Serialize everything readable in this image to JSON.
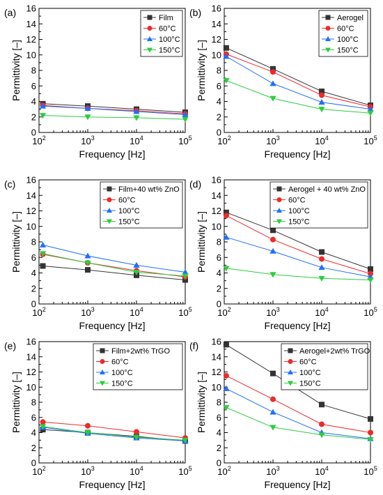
{
  "figure": {
    "colors": {
      "black": "#333333",
      "red": "#ee2a2a",
      "blue": "#1f6fff",
      "green": "#2ecc40"
    }
  },
  "chart_data": [
    {
      "type": "line",
      "panel_label": "(a)",
      "xlabel": "Frequency [Hz]",
      "ylabel": "Permittivity [–]",
      "xscale": "log",
      "xlim": [
        100,
        100000
      ],
      "ylim": [
        0,
        16
      ],
      "x_tick_labels": [
        "10^2",
        "10^3",
        "10^4",
        "10^5"
      ],
      "y_ticks": [
        0,
        2,
        4,
        6,
        8,
        10,
        12,
        14,
        16
      ],
      "legend_position": "top-right",
      "x": [
        120,
        1000,
        10000,
        100000
      ],
      "series": [
        {
          "name": "Film",
          "marker": "square",
          "color": "#333333",
          "values": [
            3.7,
            3.4,
            3.0,
            2.6
          ]
        },
        {
          "name": "60°C",
          "marker": "circle",
          "color": "#ee2a2a",
          "values": [
            3.5,
            3.1,
            2.8,
            2.4
          ]
        },
        {
          "name": "100°C",
          "marker": "triangle-up",
          "color": "#1f6fff",
          "values": [
            3.4,
            3.1,
            2.7,
            2.3
          ]
        },
        {
          "name": "150°C",
          "marker": "triangle-down",
          "color": "#2ecc40",
          "values": [
            2.2,
            2.0,
            1.9,
            1.7
          ]
        }
      ]
    },
    {
      "type": "line",
      "panel_label": "(b)",
      "xlabel": "Frequency [Hz]",
      "ylabel": "Permittivity [–]",
      "xscale": "log",
      "xlim": [
        100,
        100000
      ],
      "ylim": [
        0,
        16
      ],
      "x_tick_labels": [
        "10^2",
        "10^3",
        "10^4",
        "10^5"
      ],
      "y_ticks": [
        0,
        2,
        4,
        6,
        8,
        10,
        12,
        14,
        16
      ],
      "legend_position": "top-right",
      "x": [
        110,
        1000,
        10000,
        100000
      ],
      "series": [
        {
          "name": "Aerogel",
          "marker": "square",
          "color": "#333333",
          "values": [
            10.9,
            8.2,
            5.3,
            3.5
          ]
        },
        {
          "name": "60°C",
          "marker": "circle",
          "color": "#ee2a2a",
          "values": [
            10.1,
            7.8,
            4.8,
            3.3
          ]
        },
        {
          "name": "100°C",
          "marker": "triangle-up",
          "color": "#1f6fff",
          "values": [
            9.8,
            6.3,
            3.9,
            3.0
          ]
        },
        {
          "name": "150°C",
          "marker": "triangle-down",
          "color": "#2ecc40",
          "values": [
            6.7,
            4.4,
            3.0,
            2.5
          ]
        }
      ]
    },
    {
      "type": "line",
      "panel_label": "(c)",
      "xlabel": "Frequency [Hz]",
      "ylabel": "Permittivity [–]",
      "xscale": "log",
      "xlim": [
        100,
        100000
      ],
      "ylim": [
        0,
        16
      ],
      "x_tick_labels": [
        "10^2",
        "10^3",
        "10^4",
        "10^5"
      ],
      "y_ticks": [
        0,
        2,
        4,
        6,
        8,
        10,
        12,
        14,
        16
      ],
      "legend_position": "top-right",
      "x": [
        120,
        1000,
        10000,
        100000
      ],
      "series": [
        {
          "name": "Film+40 wt% ZnO",
          "marker": "square",
          "color": "#333333",
          "values": [
            4.9,
            4.4,
            3.7,
            3.1
          ]
        },
        {
          "name": "60°C",
          "marker": "circle",
          "color": "#ee2a2a",
          "values": [
            6.4,
            5.3,
            4.3,
            3.5
          ]
        },
        {
          "name": "100°C",
          "marker": "triangle-up",
          "color": "#1f6fff",
          "values": [
            7.6,
            6.2,
            5.0,
            4.1
          ]
        },
        {
          "name": "150°C",
          "marker": "triangle-down",
          "color": "#2ecc40",
          "values": [
            6.5,
            5.3,
            4.1,
            3.6
          ]
        }
      ]
    },
    {
      "type": "line",
      "panel_label": "(d)",
      "xlabel": "Frequency [Hz]",
      "ylabel": "Permittivity [–]",
      "xscale": "log",
      "xlim": [
        100,
        100000
      ],
      "ylim": [
        0,
        16
      ],
      "x_tick_labels": [
        "10^2",
        "10^3",
        "10^4",
        "10^5"
      ],
      "y_ticks": [
        0,
        2,
        4,
        6,
        8,
        10,
        12,
        14,
        16
      ],
      "legend_position": "top-right",
      "x": [
        110,
        1000,
        10000,
        100000
      ],
      "series": [
        {
          "name": "Aerogel + 40 wt% ZnO",
          "marker": "square",
          "color": "#333333",
          "values": [
            11.8,
            9.5,
            6.7,
            4.5
          ]
        },
        {
          "name": "60°C",
          "marker": "circle",
          "color": "#ee2a2a",
          "values": [
            11.4,
            8.3,
            5.8,
            3.9
          ]
        },
        {
          "name": "100°C",
          "marker": "triangle-up",
          "color": "#1f6fff",
          "values": [
            8.6,
            6.8,
            4.7,
            3.5
          ]
        },
        {
          "name": "150°C",
          "marker": "triangle-down",
          "color": "#2ecc40",
          "values": [
            4.6,
            3.8,
            3.3,
            3.1
          ]
        }
      ]
    },
    {
      "type": "line",
      "panel_label": "(e)",
      "xlabel": "Frequency [Hz]",
      "ylabel": "Permittivity [–]",
      "xscale": "log",
      "xlim": [
        100,
        100000
      ],
      "ylim": [
        0,
        16
      ],
      "x_tick_labels": [
        "10^2",
        "10^3",
        "10^4",
        "10^5"
      ],
      "y_ticks": [
        0,
        2,
        4,
        6,
        8,
        10,
        12,
        14,
        16
      ],
      "legend_position": "top-right",
      "x": [
        120,
        1000,
        10000,
        100000
      ],
      "series": [
        {
          "name": "Film+2wt% TrGO",
          "marker": "square",
          "color": "#333333",
          "values": [
            4.4,
            4.0,
            3.5,
            2.9
          ]
        },
        {
          "name": "60°C",
          "marker": "circle",
          "color": "#ee2a2a",
          "values": [
            5.4,
            4.9,
            4.1,
            3.3
          ]
        },
        {
          "name": "100°C",
          "marker": "triangle-up",
          "color": "#1f6fff",
          "values": [
            4.7,
            3.9,
            3.3,
            2.9
          ]
        },
        {
          "name": "150°C",
          "marker": "triangle-down",
          "color": "#2ecc40",
          "values": [
            4.8,
            4.0,
            3.4,
            3.0
          ]
        }
      ]
    },
    {
      "type": "line",
      "panel_label": "(f)",
      "xlabel": "Frequency [Hz]",
      "ylabel": "Permittivity [–]",
      "xscale": "log",
      "xlim": [
        100,
        100000
      ],
      "ylim": [
        0,
        16
      ],
      "x_tick_labels": [
        "10^2",
        "10^3",
        "10^4",
        "10^5"
      ],
      "y_ticks": [
        0,
        2,
        4,
        6,
        8,
        10,
        12,
        14,
        16
      ],
      "legend_position": "top-right",
      "x": [
        110,
        1000,
        10000,
        100000
      ],
      "series": [
        {
          "name": "Aerogel+2wt% TrGO",
          "marker": "square",
          "color": "#333333",
          "values": [
            15.6,
            11.8,
            7.7,
            5.8
          ]
        },
        {
          "name": "60°C",
          "marker": "circle",
          "color": "#ee2a2a",
          "values": [
            11.5,
            8.4,
            5.1,
            4.0
          ]
        },
        {
          "name": "100°C",
          "marker": "triangle-up",
          "color": "#1f6fff",
          "values": [
            9.8,
            6.7,
            4.0,
            3.2
          ]
        },
        {
          "name": "150°C",
          "marker": "triangle-down",
          "color": "#2ecc40",
          "values": [
            7.3,
            4.7,
            3.7,
            3.1
          ]
        }
      ]
    }
  ]
}
